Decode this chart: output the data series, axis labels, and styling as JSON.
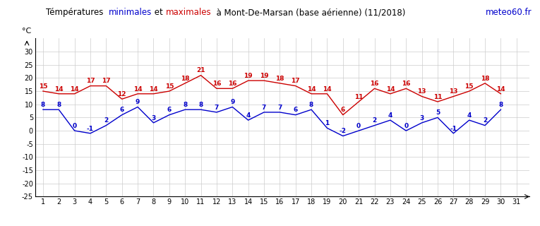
{
  "title_color_parts": [
    {
      "text": "Témpératures  ",
      "color": "black"
    },
    {
      "text": "minimales",
      "color": "#0000cc"
    },
    {
      "text": " et ",
      "color": "black"
    },
    {
      "text": "maximales",
      "color": "#cc0000"
    },
    {
      "text": "  à Mont-De-Marsan (base aérienne) (11/2018)",
      "color": "black"
    }
  ],
  "watermark": "meteo60.fr",
  "ylabel": "°C",
  "days": [
    1,
    2,
    3,
    4,
    5,
    6,
    7,
    8,
    9,
    10,
    11,
    12,
    13,
    14,
    15,
    16,
    17,
    18,
    19,
    20,
    21,
    22,
    23,
    24,
    25,
    26,
    27,
    28,
    29,
    30,
    31
  ],
  "min_temps": [
    8,
    8,
    0,
    -1,
    2,
    6,
    9,
    3,
    6,
    8,
    8,
    7,
    9,
    4,
    7,
    7,
    6,
    8,
    1,
    -2,
    0,
    2,
    4,
    0,
    3,
    5,
    -1,
    4,
    2,
    8,
    null
  ],
  "max_temps": [
    15,
    14,
    14,
    17,
    17,
    12,
    14,
    14,
    15,
    18,
    21,
    16,
    16,
    19,
    19,
    18,
    17,
    14,
    14,
    6,
    11,
    16,
    14,
    16,
    13,
    11,
    13,
    15,
    18,
    14,
    null
  ],
  "min_color": "#0000cc",
  "max_color": "#cc0000",
  "grid_color": "#cccccc",
  "background_color": "#ffffff",
  "ylim": [
    -25,
    35
  ],
  "ytick_values": [
    -25,
    -20,
    -15,
    -10,
    -5,
    0,
    5,
    10,
    15,
    20,
    25,
    30
  ],
  "xlim": [
    0.5,
    31.8
  ],
  "xticks": [
    1,
    2,
    3,
    4,
    5,
    6,
    7,
    8,
    9,
    10,
    11,
    12,
    13,
    14,
    15,
    16,
    17,
    18,
    19,
    20,
    21,
    22,
    23,
    24,
    25,
    26,
    27,
    28,
    29,
    30,
    31
  ],
  "label_fontsize": 6.5,
  "tick_fontsize": 7.0,
  "title_fontsize": 8.5,
  "watermark_fontsize": 8.5
}
